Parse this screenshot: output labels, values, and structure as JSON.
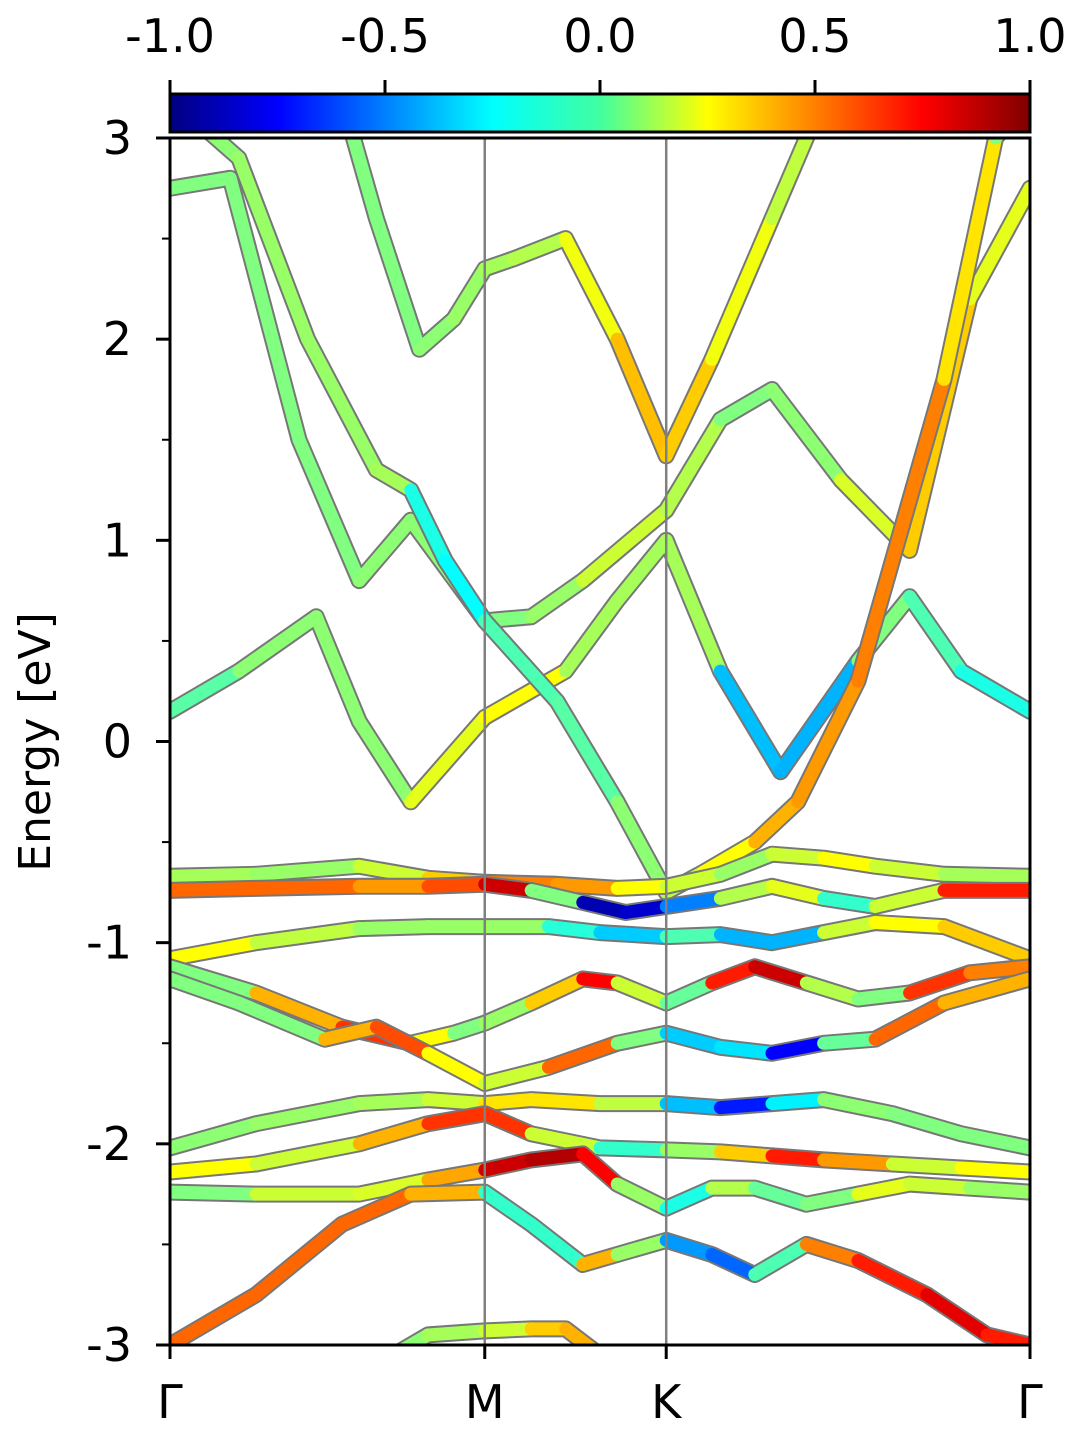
{
  "chart_data": {
    "type": "line",
    "ylabel": "Energy [eV]",
    "xlabel": "",
    "ylim": [
      -3,
      3
    ],
    "y_ticks": [
      "3",
      "2",
      "1",
      "0",
      "-1",
      "-2",
      "-3"
    ],
    "k_path": [
      "Γ",
      "M",
      "K",
      "Γ"
    ],
    "k_path_positions": [
      0.0,
      0.366,
      0.577,
      1.0
    ],
    "colorbar": {
      "colormap": "jet",
      "range": [
        -1.0,
        1.0
      ],
      "ticks": [
        "-1.0",
        "-0.5",
        "0.0",
        "0.5",
        "1.0"
      ]
    },
    "series": [
      {
        "x": [
          0.0,
          0.08,
          0.17,
          0.22,
          0.28,
          0.366,
          0.46,
          0.52,
          0.577,
          0.64,
          0.71,
          0.8,
          0.86,
          0.92,
          1.0
        ],
        "y": [
          0.15,
          0.35,
          0.62,
          0.1,
          -0.3,
          0.12,
          0.35,
          0.7,
          1.0,
          0.35,
          -0.15,
          0.4,
          0.72,
          0.35,
          0.15
        ],
        "color": [
          -0.2,
          0.05,
          0.0,
          0.05,
          0.0,
          0.4,
          0.1,
          0.05,
          0.1,
          0.05,
          -0.8,
          0.0,
          0.0,
          -0.2,
          -0.2
        ]
      },
      {
        "x": [
          0.0,
          0.07,
          0.15,
          0.22,
          0.28,
          0.366,
          0.42,
          0.48,
          0.577,
          0.64,
          0.7,
          0.78,
          0.86,
          0.93,
          1.0
        ],
        "y": [
          2.75,
          2.8,
          1.5,
          0.8,
          1.1,
          0.6,
          0.62,
          0.8,
          1.15,
          1.6,
          1.75,
          1.3,
          0.95,
          2.2,
          2.75
        ],
        "color": [
          0.0,
          0.0,
          0.0,
          0.0,
          0.05,
          0.0,
          0.0,
          0.1,
          0.2,
          0.0,
          0.0,
          0.05,
          0.3,
          0.4,
          0.0
        ]
      },
      {
        "x": [
          0.0,
          0.08,
          0.16,
          0.24,
          0.28,
          0.32,
          0.366,
          0.45,
          0.52,
          0.577,
          0.62,
          0.68,
          0.73,
          0.8,
          0.9,
          0.96,
          1.0
        ],
        "y": [
          3.2,
          2.9,
          2.0,
          1.35,
          1.25,
          0.9,
          0.6,
          0.2,
          -0.3,
          -0.75,
          -0.65,
          -0.5,
          -0.3,
          0.3,
          1.8,
          3.0,
          3.2
        ],
        "color": [
          0.0,
          0.05,
          0.05,
          0.05,
          0.1,
          -0.5,
          0.0,
          -0.2,
          0.05,
          0.0,
          0.2,
          0.3,
          0.5,
          0.4,
          0.6,
          0.0,
          0.0
        ]
      },
      {
        "x": [
          0.2,
          0.24,
          0.29,
          0.33,
          0.366,
          0.4,
          0.46,
          0.52,
          0.577,
          0.63,
          0.7,
          0.76,
          0.8,
          0.86,
          0.92,
          0.97
        ],
        "y": [
          3.2,
          2.6,
          1.95,
          2.1,
          2.35,
          2.4,
          2.5,
          2.0,
          1.42,
          1.9,
          2.6,
          3.2,
          3.2,
          3.2,
          3.2,
          3.2
        ],
        "color": [
          0.0,
          0.0,
          0.0,
          0.05,
          0.05,
          0.1,
          0.1,
          0.35,
          0.4,
          0.3,
          0.15,
          0.1,
          0.1,
          0.1,
          0.1,
          0.1
        ]
      },
      {
        "x": [
          0.0,
          0.1,
          0.22,
          0.3,
          0.366,
          0.45,
          0.52,
          0.577,
          0.64,
          0.7,
          0.76,
          0.82,
          0.9,
          1.0
        ],
        "y": [
          -0.67,
          -0.66,
          -0.62,
          -0.68,
          -0.7,
          -0.71,
          -0.73,
          -0.72,
          -0.66,
          -0.56,
          -0.58,
          -0.62,
          -0.66,
          -0.67
        ],
        "color": [
          0.05,
          0.1,
          0.0,
          0.3,
          0.4,
          0.6,
          0.3,
          0.2,
          0.1,
          0.0,
          0.3,
          0.2,
          0.1,
          0.05
        ]
      },
      {
        "x": [
          0.0,
          0.1,
          0.22,
          0.3,
          0.366,
          0.42,
          0.48,
          0.53,
          0.577,
          0.64,
          0.7,
          0.76,
          0.82,
          0.9,
          1.0
        ],
        "y": [
          -0.74,
          -0.73,
          -0.72,
          -0.72,
          -0.71,
          -0.74,
          -0.8,
          -0.85,
          -0.82,
          -0.78,
          -0.72,
          -0.78,
          -0.82,
          -0.74,
          -0.74
        ],
        "color": [
          0.5,
          0.6,
          0.5,
          0.4,
          0.8,
          0.9,
          -0.9,
          -0.9,
          -0.8,
          -0.2,
          0.4,
          0.0,
          -0.3,
          0.6,
          0.8
        ]
      },
      {
        "x": [
          0.0,
          0.1,
          0.22,
          0.3,
          0.366,
          0.44,
          0.5,
          0.577,
          0.64,
          0.7,
          0.76,
          0.82,
          0.9,
          1.0
        ],
        "y": [
          -1.08,
          -1.0,
          -0.93,
          -0.92,
          -0.92,
          -0.92,
          -0.95,
          -0.97,
          -0.96,
          -1.0,
          -0.95,
          -0.9,
          -0.92,
          -1.08
        ],
        "color": [
          0.3,
          0.2,
          0.05,
          0.05,
          0.05,
          0.05,
          -0.4,
          -0.3,
          0.1,
          -0.9,
          0.1,
          0.2,
          0.3,
          0.4
        ]
      },
      {
        "x": [
          0.0,
          0.1,
          0.2,
          0.28,
          0.33,
          0.366,
          0.42,
          0.48,
          0.52,
          0.577,
          0.63,
          0.68,
          0.74,
          0.8,
          0.86,
          0.93,
          1.0
        ],
        "y": [
          -1.12,
          -1.25,
          -1.42,
          -1.5,
          -1.45,
          -1.4,
          -1.3,
          -1.18,
          -1.2,
          -1.3,
          -1.2,
          -1.12,
          -1.2,
          -1.28,
          -1.25,
          -1.15,
          -1.12
        ],
        "color": [
          0.0,
          0.0,
          0.8,
          0.5,
          0.0,
          0.0,
          0.1,
          0.6,
          0.9,
          -0.6,
          0.5,
          0.9,
          0.8,
          -0.6,
          0.6,
          0.7,
          0.3
        ]
      },
      {
        "x": [
          0.0,
          0.08,
          0.18,
          0.24,
          0.3,
          0.366,
          0.44,
          0.52,
          0.577,
          0.64,
          0.7,
          0.76,
          0.82,
          0.9,
          1.0
        ],
        "y": [
          -1.18,
          -1.3,
          -1.48,
          -1.42,
          -1.55,
          -1.7,
          -1.62,
          -1.5,
          -1.45,
          -1.52,
          -1.55,
          -1.5,
          -1.48,
          -1.3,
          -1.18
        ],
        "color": [
          0.0,
          0.0,
          0.0,
          0.8,
          0.4,
          0.1,
          0.2,
          0.9,
          -0.9,
          0.2,
          -0.8,
          -0.7,
          0.6,
          0.5,
          0.3
        ]
      },
      {
        "x": [
          0.0,
          0.1,
          0.22,
          0.3,
          0.366,
          0.42,
          0.5,
          0.577,
          0.64,
          0.7,
          0.76,
          0.84,
          0.92,
          1.0
        ],
        "y": [
          -2.02,
          -1.9,
          -1.8,
          -1.78,
          -1.8,
          -1.78,
          -1.8,
          -1.8,
          -1.82,
          -1.8,
          -1.78,
          -1.85,
          -1.95,
          -2.02
        ],
        "color": [
          0.0,
          0.05,
          0.05,
          0.1,
          0.2,
          0.4,
          0.2,
          0.05,
          -0.8,
          -0.6,
          0.05,
          0.0,
          0.0,
          0.0
        ]
      },
      {
        "x": [
          0.0,
          0.1,
          0.22,
          0.3,
          0.366,
          0.42,
          0.5,
          0.577,
          0.64,
          0.7,
          0.76,
          0.84,
          0.92,
          1.0
        ],
        "y": [
          -2.14,
          -2.1,
          -2.0,
          -1.9,
          -1.85,
          -1.95,
          -2.02,
          -2.03,
          -2.04,
          -2.06,
          -2.08,
          -2.1,
          -2.12,
          -2.14
        ],
        "color": [
          0.4,
          0.1,
          0.2,
          0.6,
          0.7,
          0.6,
          -0.3,
          0.0,
          0.1,
          0.6,
          0.8,
          0.1,
          0.2,
          0.3
        ]
      },
      {
        "x": [
          0.0,
          0.1,
          0.22,
          0.3,
          0.366,
          0.42,
          0.48,
          0.52,
          0.577,
          0.63,
          0.68,
          0.74,
          0.8,
          0.86,
          0.93,
          1.0
        ],
        "y": [
          -2.24,
          -2.25,
          -2.25,
          -2.18,
          -2.13,
          -2.08,
          -2.05,
          -2.2,
          -2.32,
          -2.22,
          -2.22,
          -2.3,
          -2.25,
          -2.2,
          -2.22,
          -2.24
        ],
        "color": [
          0.0,
          0.0,
          0.3,
          0.05,
          0.8,
          0.9,
          0.9,
          0.6,
          -0.5,
          0.1,
          0.1,
          -0.2,
          0.2,
          0.2,
          0.1,
          0.0
        ]
      },
      {
        "x": [
          0.0,
          0.1,
          0.2,
          0.28,
          0.366,
          0.42,
          0.48,
          0.52,
          0.577,
          0.63,
          0.68,
          0.74,
          0.8,
          0.88,
          0.95,
          1.0
        ],
        "y": [
          -3.0,
          -2.75,
          -2.4,
          -2.25,
          -2.24,
          -2.4,
          -2.6,
          -2.55,
          -2.48,
          -2.55,
          -2.65,
          -2.5,
          -2.58,
          -2.75,
          -2.95,
          -3.0
        ],
        "color": [
          0.6,
          0.5,
          0.6,
          0.5,
          0.3,
          -0.6,
          0.3,
          0.5,
          -0.4,
          -0.5,
          -0.6,
          0.4,
          0.6,
          0.8,
          0.8,
          0.6
        ]
      },
      {
        "x": [
          0.26,
          0.3,
          0.366,
          0.42,
          0.46,
          0.5
        ],
        "y": [
          -3.05,
          -2.95,
          -2.93,
          -2.92,
          -2.92,
          -3.05
        ],
        "color": [
          0.0,
          0.05,
          0.1,
          0.2,
          0.5,
          0.3
        ]
      }
    ]
  }
}
